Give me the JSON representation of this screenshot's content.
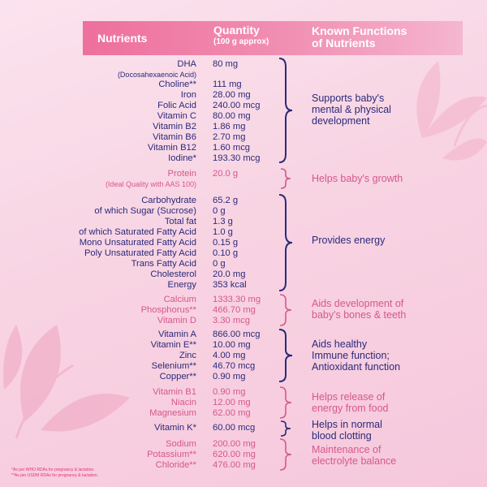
{
  "header": {
    "nutrients": "Nutrients",
    "quantity": "Quantity",
    "quantity_sub": "(100 g approx)",
    "functions_line1": "Known Functions",
    "functions_line2": "of Nutrients"
  },
  "colors": {
    "navy": "#2a2a7a",
    "pink": "#d6588a",
    "header_pink": "#ee6f9c"
  },
  "rows": [
    {
      "name": "DHA",
      "qty": "80 mg"
    },
    {
      "name": "(Docosahexaenoic Acid)",
      "qty": ""
    },
    {
      "name": "Choline**",
      "qty": "111 mg"
    },
    {
      "name": "Iron",
      "qty": "28.00 mg"
    },
    {
      "name": "Folic Acid",
      "qty": "240.00 mcg"
    },
    {
      "name": "Vitamin C",
      "qty": "80.00 mg"
    },
    {
      "name": "Vitamin B2",
      "qty": "1.86 mg"
    },
    {
      "name": "Vitamin B6",
      "qty": "2.70 mg"
    },
    {
      "name": "Vitamin B12",
      "qty": "1.60 mcg"
    },
    {
      "name": "Iodine*",
      "qty": "193.30 mcg"
    },
    {
      "name": "Protein",
      "qty": "20.0 g"
    },
    {
      "name": "(Ideal Quality with AAS 100)",
      "qty": ""
    },
    {
      "name": "Carbohydrate",
      "qty": "65.2 g"
    },
    {
      "name": "of which Sugar (Sucrose)",
      "qty": "0 g"
    },
    {
      "name": "Total fat",
      "qty": "1.3 g"
    },
    {
      "name": "of which Saturated Fatty Acid",
      "qty": "1.0 g"
    },
    {
      "name": "Mono Unsaturated Fatty Acid",
      "qty": "0.15 g"
    },
    {
      "name": "Poly Unsaturated Fatty Acid",
      "qty": "0.10 g"
    },
    {
      "name": "Trans Fatty Acid",
      "qty": "0 g"
    },
    {
      "name": "Cholesterol",
      "qty": "20.0 mg"
    },
    {
      "name": "Energy",
      "qty": "353 kcal"
    },
    {
      "name": "Calcium",
      "qty": "1333.30 mg"
    },
    {
      "name": "Phosphorus**",
      "qty": "466.70 mg"
    },
    {
      "name": "Vitamin D",
      "qty": "3.30 mcg"
    },
    {
      "name": "Vitamin A",
      "qty": "866.00 mcg"
    },
    {
      "name": "Vitamin E**",
      "qty": "10.00 mg"
    },
    {
      "name": "Zinc",
      "qty": "4.00 mg"
    },
    {
      "name": "Selenium**",
      "qty": "46.70 mcg"
    },
    {
      "name": "Copper**",
      "qty": "0.90 mg"
    },
    {
      "name": "Vitamin B1",
      "qty": "0.90 mg"
    },
    {
      "name": "Niacin",
      "qty": "12.00 mg"
    },
    {
      "name": "Magnesium",
      "qty": "62.00 mg"
    },
    {
      "name": "Vitamin K*",
      "qty": "60.00 mcg"
    },
    {
      "name": "Sodium",
      "qty": "200.00 mg"
    },
    {
      "name": "Potassium**",
      "qty": "620.00 mg"
    },
    {
      "name": "Chloride**",
      "qty": "476.00 mg"
    }
  ],
  "functions": [
    {
      "line1": "Supports baby's",
      "line2": "mental & physical",
      "line3": "development"
    },
    {
      "line1": "Helps baby's growth"
    },
    {
      "line1": "Provides energy"
    },
    {
      "line1": "Aids development of",
      "line2": "baby's bones & teeth"
    },
    {
      "line1": "Aids healthy",
      "line2": "Immune function;",
      "line3": "Antioxidant function"
    },
    {
      "line1": "Helps release of",
      "line2": "energy from food"
    },
    {
      "line1": "Helps in normal",
      "line2": "blood clotting"
    },
    {
      "line1": "Maintenance of",
      "line2": "electrolyte balance"
    }
  ],
  "footnotes": [
    "*As per WHO RDAs for pregnancy & lactation.",
    "**As per USDM RDAs for pregnancy & lactation."
  ]
}
